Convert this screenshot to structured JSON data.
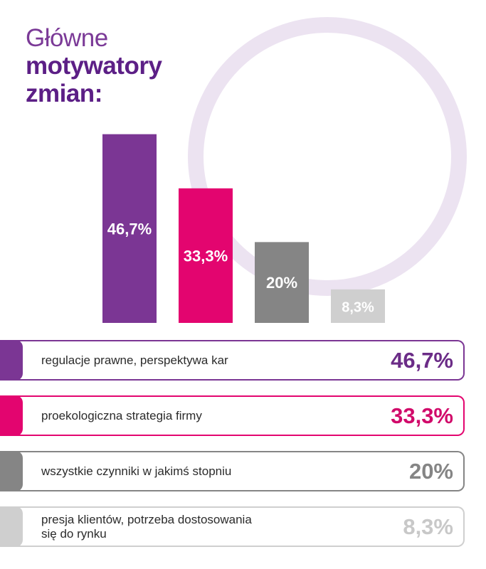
{
  "title": {
    "line1": "Główne",
    "line2": "motywatory",
    "line3": "zmian:"
  },
  "colors": {
    "purple": "#7b3694",
    "magenta": "#e3056f",
    "gray": "#858585",
    "lightgray": "#cfcfcf",
    "ring": "#ece3f1"
  },
  "chart_data": {
    "type": "bar",
    "categories": [
      "regulacje prawne, perspektywa kar",
      "proekologiczna strategia firmy",
      "wszystkie czynniki w jakimś stopniu",
      "presja klientów, potrzeba dostosowania się do rynku"
    ],
    "values": [
      46.7,
      33.3,
      20,
      8.3
    ],
    "labels": [
      "46,7%",
      "33,3%",
      "20%",
      "8,3%"
    ],
    "colors": [
      "#7b3694",
      "#e3056f",
      "#858585",
      "#cfcfcf"
    ],
    "ylim": [
      0,
      50
    ],
    "grid": false
  },
  "legend": {
    "items": [
      {
        "text_line1": "regulacje prawne, perspektywa kar",
        "text_line2": "",
        "value": "46,7%",
        "color": "#7b3694",
        "value_color": "#6b2c87"
      },
      {
        "text_line1": "proekologiczna strategia firmy",
        "text_line2": "",
        "value": "33,3%",
        "color": "#e3056f",
        "value_color": "#d10a6a"
      },
      {
        "text_line1": "wszystkie czynniki w jakimś stopniu",
        "text_line2": "",
        "value": "20%",
        "color": "#858585",
        "value_color": "#858585"
      },
      {
        "text_line1": "presja klientów, potrzeba dostosowania",
        "text_line2": "się do rynku",
        "value": "8,3%",
        "color": "#cfcfcf",
        "value_color": "#c8c8c8"
      }
    ]
  }
}
